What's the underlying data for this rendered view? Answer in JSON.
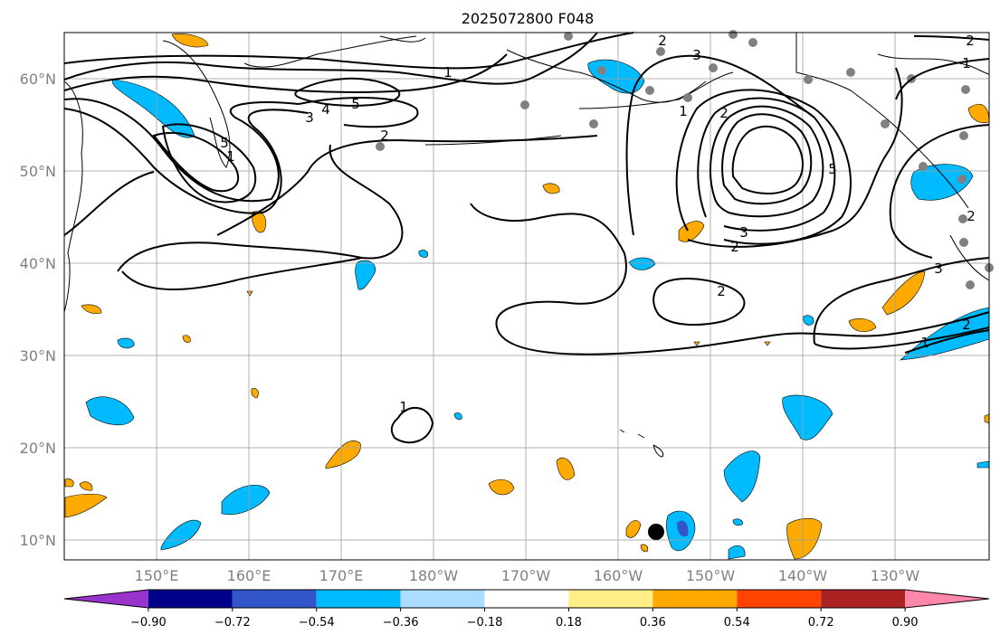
{
  "title": "2025072800 F048",
  "lat_labels": [
    "60°N",
    "50°N",
    "40°N",
    "30°N",
    "20°N",
    "10°N"
  ],
  "lon_labels": [
    "150°E",
    "160°E",
    "170°E",
    "180°W",
    "170°W",
    "160°W",
    "150°W",
    "140°W",
    "130°W"
  ],
  "colorbar": {
    "colors": [
      "#9933cc",
      "#000088",
      "#3355cc",
      "#00bbff",
      "#aaddff",
      "#ffffff",
      "#ffee88",
      "#ffaa00",
      "#ff4400",
      "#aa2222",
      "#ff88aa"
    ],
    "tick_labels": [
      "−0.90",
      "−0.72",
      "−0.54",
      "−0.36",
      "−0.18",
      "0.18",
      "0.36",
      "0.54",
      "0.72",
      "0.90"
    ]
  },
  "contour_labels": [
    "1",
    "2",
    "3",
    "4",
    "5",
    "5",
    "3",
    "2",
    "1",
    "2",
    "5",
    "3",
    "2",
    "1",
    "2",
    "3",
    "1",
    "2",
    "1",
    "2",
    "1",
    "2"
  ],
  "marker": {
    "name": "storm-center-marker"
  }
}
